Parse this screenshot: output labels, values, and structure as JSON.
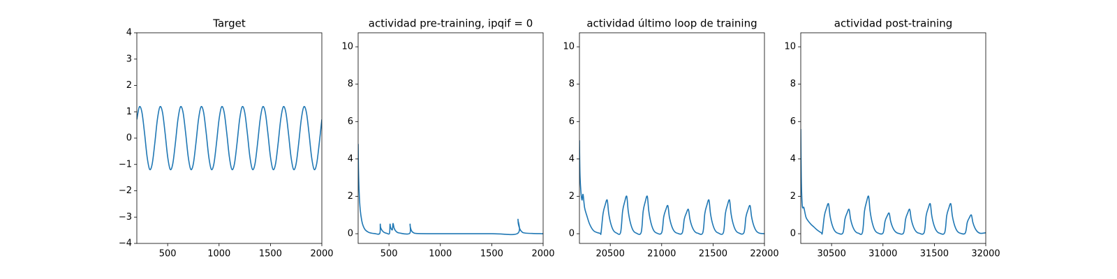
{
  "chart_data": [
    {
      "type": "line",
      "title": "Target",
      "color": "#1f77b4",
      "xlim": [
        200,
        2000
      ],
      "ylim": [
        -4,
        4
      ],
      "xticks": [
        500,
        1000,
        1500,
        2000
      ],
      "yticks": [
        {
          "value": -4,
          "label": "−4"
        },
        {
          "value": -3,
          "label": "−3"
        },
        {
          "value": -2,
          "label": "−2"
        },
        {
          "value": -1,
          "label": "−1"
        },
        0,
        1,
        2,
        3,
        4
      ],
      "x": [
        200,
        225,
        250,
        275,
        300,
        325,
        350,
        375,
        400,
        425,
        450,
        475,
        500,
        525,
        550,
        575,
        600,
        625,
        650,
        675,
        700,
        725,
        750,
        775,
        800,
        825,
        850,
        875,
        900,
        925,
        950,
        975,
        1000,
        1025,
        1050,
        1075,
        1100,
        1125,
        1150,
        1175,
        1200,
        1225,
        1250,
        1275,
        1300,
        1325,
        1350,
        1375,
        1400,
        1425,
        1450,
        1475,
        1500,
        1525,
        1550,
        1575,
        1600,
        1625,
        1650,
        1675,
        1700,
        1725,
        1750,
        1775,
        1800,
        1825,
        1850,
        1875,
        1900,
        1925,
        1950,
        1975,
        2000
      ],
      "values": [
        0.71,
        1.19,
        0.97,
        0.19,
        -0.71,
        -1.19,
        -0.97,
        -0.19,
        0.71,
        1.19,
        0.97,
        0.19,
        -0.71,
        -1.19,
        -0.97,
        -0.19,
        0.71,
        1.19,
        0.97,
        0.19,
        -0.71,
        -1.19,
        -0.97,
        -0.19,
        0.71,
        1.19,
        0.97,
        0.19,
        -0.71,
        -1.19,
        -0.97,
        -0.19,
        0.71,
        1.19,
        0.97,
        0.19,
        -0.71,
        -1.19,
        -0.97,
        -0.19,
        0.71,
        1.19,
        0.97,
        0.19,
        -0.71,
        -1.19,
        -0.97,
        -0.19,
        0.71,
        1.19,
        0.97,
        0.19,
        -0.71,
        -1.19,
        -0.97,
        -0.19,
        0.71,
        1.19,
        0.97,
        0.19,
        -0.71,
        -1.19,
        -0.97,
        -0.19,
        0.71,
        1.19,
        0.97,
        0.19,
        -0.71,
        -1.19,
        -0.97,
        -0.19,
        0.71
      ]
    },
    {
      "type": "line",
      "title": "actividad pre-training, ipqif = 0",
      "color": "#1f77b4",
      "xlim": [
        200,
        2000
      ],
      "ylim": [
        -0.52,
        10.75
      ],
      "xticks": [
        500,
        1000,
        1500,
        2000
      ],
      "yticks": [
        0,
        2,
        4,
        6,
        8,
        10
      ],
      "x": [
        200,
        203,
        210,
        220,
        235,
        250,
        270,
        300,
        330,
        360,
        410,
        415,
        418,
        430,
        450,
        480,
        505,
        510,
        515,
        530,
        535,
        540,
        550,
        570,
        600,
        700,
        705,
        708,
        720,
        740,
        780,
        1000,
        1500,
        1750,
        1755,
        1758,
        1770,
        1790,
        1830,
        2000
      ],
      "values": [
        4.8,
        3.5,
        2.2,
        1.3,
        0.7,
        0.4,
        0.2,
        0.08,
        0.03,
        0.01,
        0.01,
        0.5,
        0.35,
        0.2,
        0.08,
        0.02,
        0.02,
        0.5,
        0.35,
        0.2,
        0.3,
        0.55,
        0.3,
        0.12,
        0.04,
        0.01,
        0.5,
        0.35,
        0.15,
        0.05,
        0.01,
        0.0,
        0.0,
        0.01,
        0.75,
        0.55,
        0.3,
        0.12,
        0.03,
        0.0
      ]
    },
    {
      "type": "line",
      "title": "actividad último loop de training",
      "color": "#1f77b4",
      "xlim": [
        20200,
        22000
      ],
      "ylim": [
        -0.52,
        10.75
      ],
      "xticks": [
        20500,
        21000,
        21500,
        22000
      ],
      "yticks": [
        0,
        2,
        4,
        6,
        8,
        10
      ],
      "x": [
        20200,
        20205,
        20215,
        20225,
        20235,
        20250,
        20270,
        20300,
        20340,
        20400,
        20410,
        20430,
        20450,
        20470,
        20485,
        20505,
        20530,
        20560,
        20600,
        20620,
        20640,
        20660,
        20675,
        20695,
        20720,
        20750,
        20800,
        20820,
        20840,
        20860,
        20875,
        20895,
        20920,
        20950,
        21000,
        21020,
        21040,
        21060,
        21075,
        21095,
        21120,
        21150,
        21200,
        21220,
        21240,
        21260,
        21275,
        21295,
        21320,
        21350,
        21400,
        21420,
        21440,
        21460,
        21475,
        21495,
        21520,
        21550,
        21600,
        21620,
        21640,
        21660,
        21675,
        21695,
        21720,
        21750,
        21800,
        21820,
        21840,
        21860,
        21875,
        21895,
        21920,
        21950,
        22000
      ],
      "values": [
        5.0,
        3.2,
        2.2,
        1.8,
        2.1,
        1.4,
        1.0,
        0.5,
        0.15,
        0.02,
        0.05,
        1.08,
        1.53,
        1.8,
        1.08,
        0.54,
        0.18,
        0.04,
        0.06,
        1.2,
        1.7,
        2.0,
        1.2,
        0.6,
        0.2,
        0.04,
        0.06,
        1.2,
        1.7,
        2.0,
        1.2,
        0.6,
        0.2,
        0.04,
        0.05,
        0.9,
        1.28,
        1.5,
        0.9,
        0.45,
        0.15,
        0.03,
        0.04,
        0.78,
        1.1,
        1.3,
        0.78,
        0.39,
        0.13,
        0.03,
        0.05,
        1.08,
        1.53,
        1.8,
        1.08,
        0.54,
        0.18,
        0.04,
        0.05,
        1.08,
        1.53,
        1.8,
        1.08,
        0.54,
        0.18,
        0.04,
        0.05,
        0.9,
        1.28,
        1.5,
        0.9,
        0.45,
        0.15,
        0.03,
        0.0
      ]
    },
    {
      "type": "line",
      "title": "actividad post-training",
      "color": "#1f77b4",
      "xlim": [
        30200,
        32000
      ],
      "ylim": [
        -0.52,
        10.75
      ],
      "xticks": [
        30500,
        31000,
        31500,
        32000
      ],
      "yticks": [
        0,
        2,
        4,
        6,
        8,
        10
      ],
      "x": [
        30200,
        30205,
        30215,
        30230,
        30250,
        30270,
        30300,
        30330,
        30360,
        30400,
        30410,
        30430,
        30450,
        30470,
        30485,
        30505,
        30530,
        30560,
        30610,
        30630,
        30650,
        30670,
        30685,
        30705,
        30730,
        30760,
        30800,
        30820,
        30840,
        30860,
        30875,
        30895,
        30920,
        30950,
        31000,
        31020,
        31040,
        31060,
        31075,
        31095,
        31120,
        31150,
        31200,
        31220,
        31240,
        31260,
        31275,
        31295,
        31320,
        31350,
        31400,
        31420,
        31440,
        31460,
        31475,
        31495,
        31520,
        31550,
        31600,
        31620,
        31640,
        31660,
        31675,
        31695,
        31720,
        31750,
        31800,
        31820,
        31840,
        31860,
        31875,
        31895,
        31920,
        31950,
        32000
      ],
      "values": [
        5.6,
        3.0,
        1.5,
        1.4,
        0.9,
        0.7,
        0.5,
        0.35,
        0.2,
        0.05,
        0.05,
        0.96,
        1.36,
        1.6,
        0.96,
        0.48,
        0.16,
        0.03,
        0.04,
        0.78,
        1.1,
        1.3,
        0.78,
        0.39,
        0.13,
        0.03,
        0.06,
        1.2,
        1.7,
        2.0,
        1.2,
        0.6,
        0.2,
        0.04,
        0.03,
        0.66,
        0.94,
        1.1,
        0.66,
        0.33,
        0.11,
        0.02,
        0.04,
        0.78,
        1.1,
        1.3,
        0.78,
        0.39,
        0.13,
        0.03,
        0.05,
        0.96,
        1.36,
        1.6,
        0.96,
        0.48,
        0.16,
        0.03,
        0.05,
        0.96,
        1.36,
        1.6,
        0.96,
        0.48,
        0.16,
        0.03,
        0.03,
        0.6,
        0.85,
        1.0,
        0.6,
        0.3,
        0.1,
        0.02,
        0.05
      ]
    }
  ]
}
